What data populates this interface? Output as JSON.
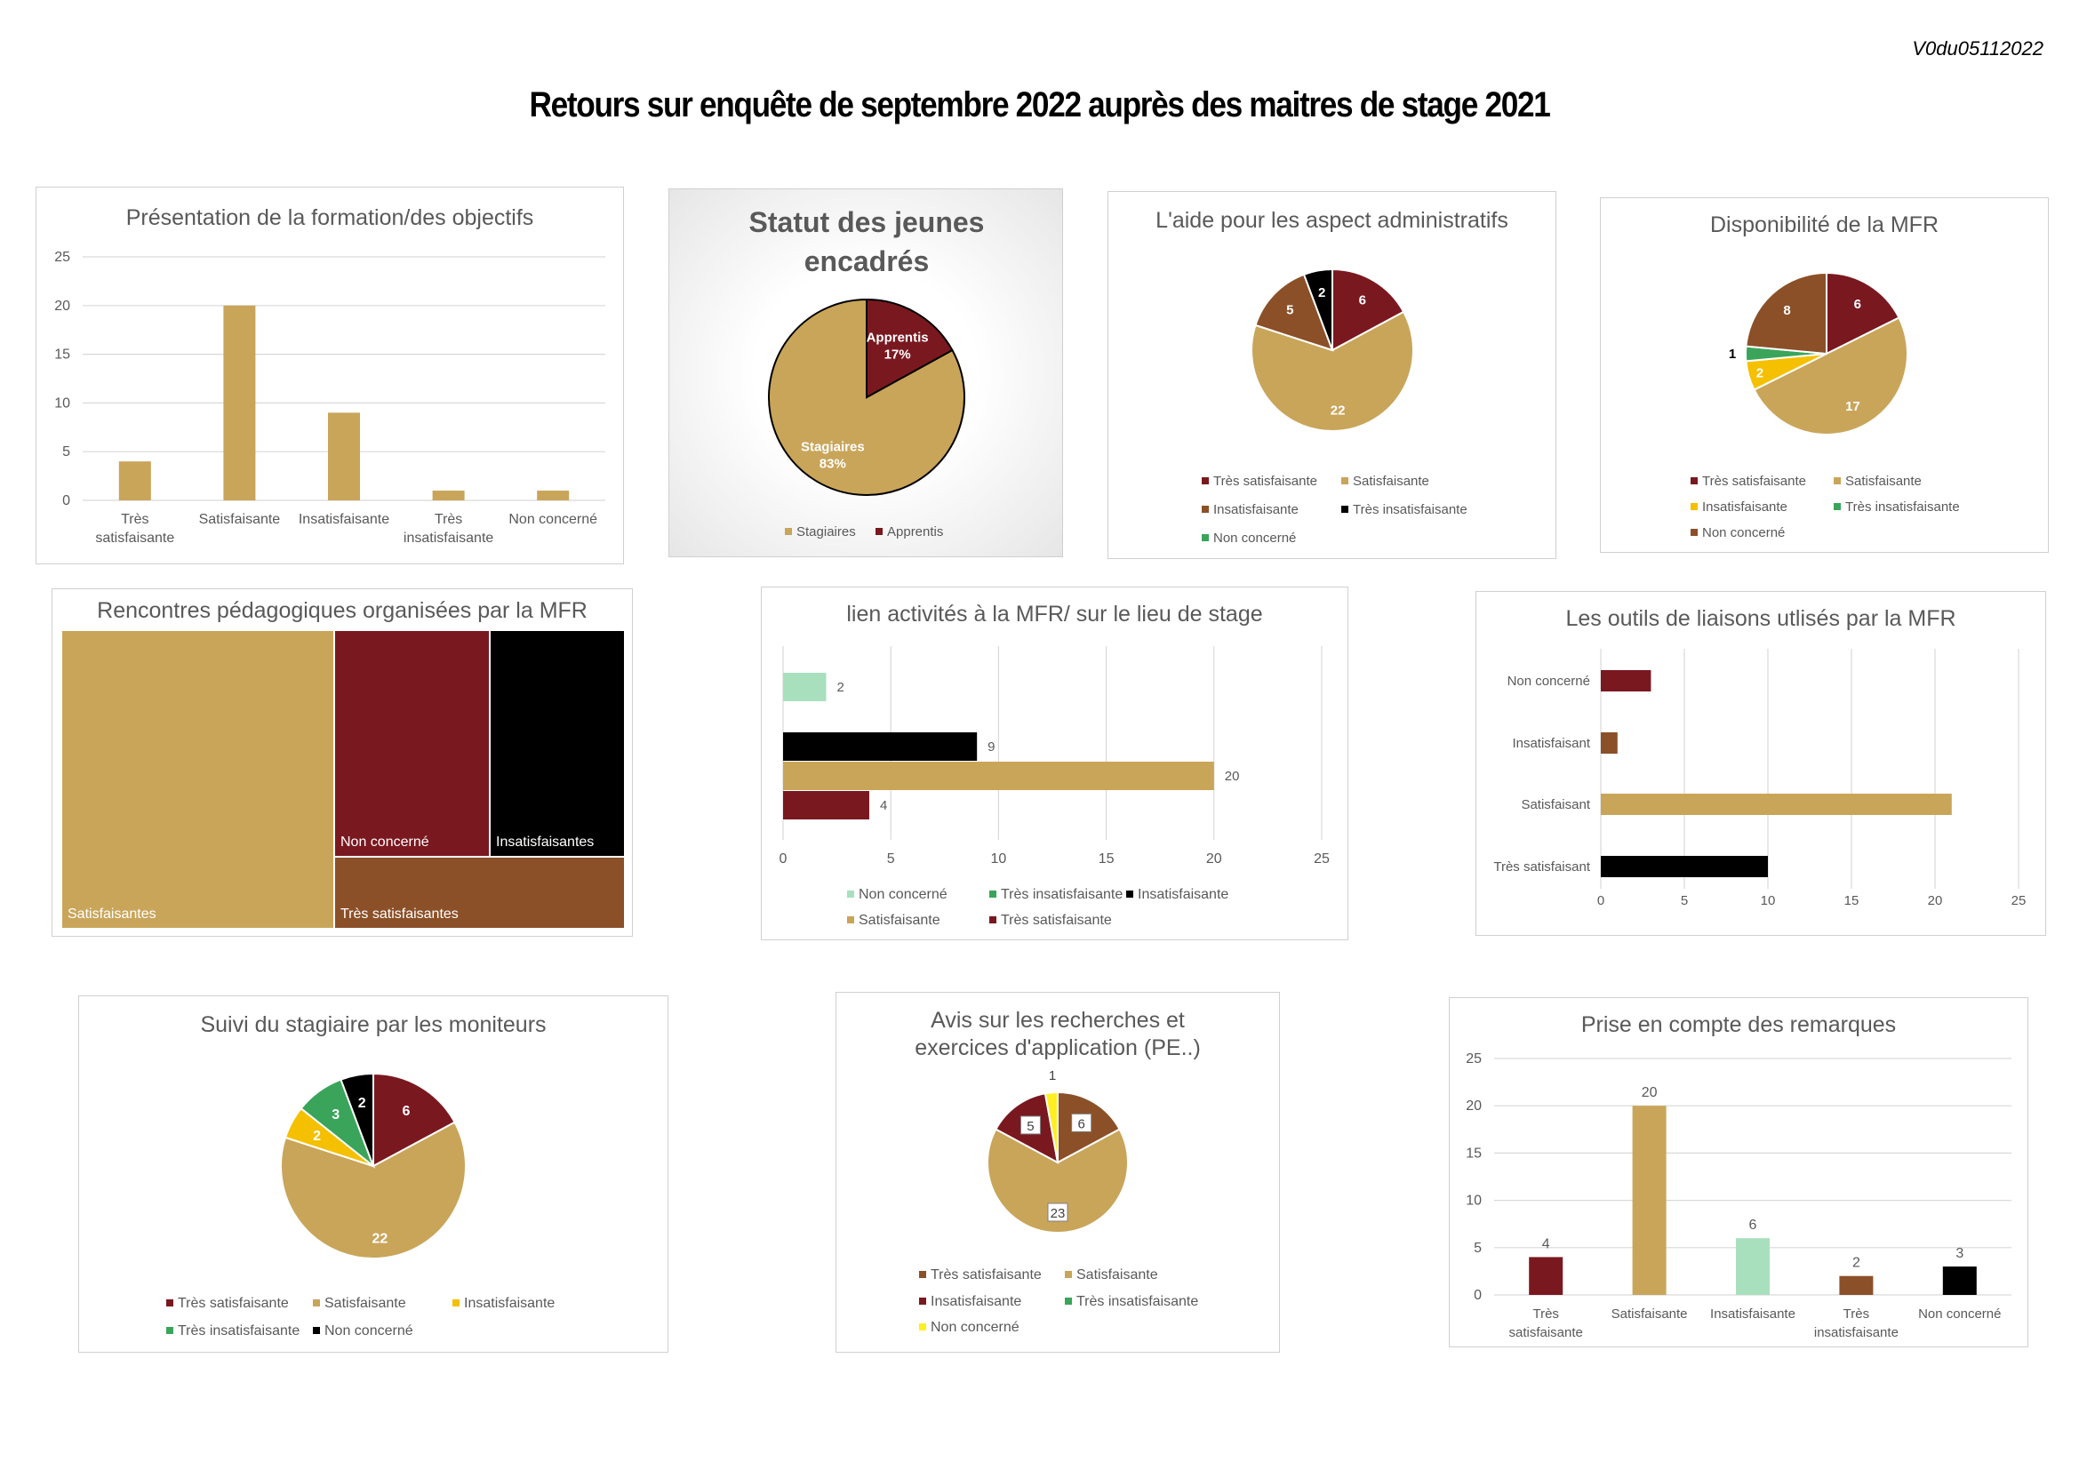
{
  "header": {
    "version": "V0du05112022",
    "title": "Retours sur enquête de septembre 2022 auprès des maitres de stage 2021"
  },
  "colors": {
    "gold": "#c9a55a",
    "bordeaux": "#7a1820",
    "brown": "#8b5028",
    "black": "#000000",
    "yellow": "#f5c000",
    "green": "#3aa55a",
    "mint": "#a8e0be",
    "bright_yellow": "#ffee22"
  },
  "chart_data": [
    {
      "id": "presentation",
      "type": "bar",
      "title": "Présentation de la formation/des objectifs",
      "categories": [
        "Très satisfaisante",
        "Satisfaisante",
        "Insatisfaisante",
        "Très insatisfaisante",
        "Non concerné"
      ],
      "values": [
        4,
        20,
        9,
        1,
        1
      ],
      "ylim": [
        0,
        25
      ],
      "yticks": [
        0,
        5,
        10,
        15,
        20,
        25
      ],
      "grid": true
    },
    {
      "id": "statut",
      "type": "pie",
      "title": "Statut des jeunes encadrés",
      "labels": [
        "Stagiaires",
        "Apprentis"
      ],
      "values": [
        83,
        17
      ],
      "value_labels": [
        "83%",
        "17%"
      ],
      "legend": "bottom"
    },
    {
      "id": "aide-admin",
      "type": "pie",
      "title": "L'aide pour les aspect administratifs",
      "labels": [
        "Très satisfaisante",
        "Satisfaisante",
        "Insatisfaisante",
        "Très insatisfaisante",
        "Non concerné"
      ],
      "values": [
        6,
        22,
        5,
        2,
        0
      ],
      "legend": "bottom"
    },
    {
      "id": "disponibilite",
      "type": "pie",
      "title": "Disponibilité de la MFR",
      "labels": [
        "Très satisfaisante",
        "Satisfaisante",
        "Insatisfaisante",
        "Très insatisfaisante",
        "Non concerné"
      ],
      "values": [
        6,
        17,
        2,
        1,
        8
      ],
      "legend": "bottom"
    },
    {
      "id": "rencontres",
      "type": "treemap",
      "title": "Rencontres pédagogiques organisées par la MFR",
      "labels": [
        "Satisfaisantes",
        "Non concerné",
        "Insatisfaisantes",
        "Très satisfaisantes"
      ]
    },
    {
      "id": "lien-activites",
      "type": "bar",
      "orientation": "horizontal",
      "title": "lien activités à la MFR/ sur le lieu de stage",
      "series": [
        {
          "name": "Non concerné",
          "value": 2
        },
        {
          "name": "Très insatisfaisante",
          "value": 0
        },
        {
          "name": "Insatisfaisante",
          "value": 9
        },
        {
          "name": "Satisfaisante",
          "value": 20
        },
        {
          "name": "Très satisfaisante",
          "value": 4
        }
      ],
      "xlim": [
        0,
        25
      ],
      "xticks": [
        0,
        5,
        10,
        15,
        20,
        25
      ],
      "legend": "bottom"
    },
    {
      "id": "outils-liaison",
      "type": "bar",
      "orientation": "horizontal",
      "title": "Les outils de liaisons utlisés par la MFR",
      "categories": [
        "Très satisfaisant",
        "Satisfaisant",
        "Insatisfaisant",
        "Non concerné"
      ],
      "values": [
        10,
        21,
        1,
        3
      ],
      "xlim": [
        0,
        25
      ],
      "xticks": [
        0,
        5,
        10,
        15,
        20,
        25
      ],
      "grid": true
    },
    {
      "id": "suivi",
      "type": "pie",
      "title": "Suivi du stagiaire par les moniteurs",
      "labels": [
        "Très satisfaisante",
        "Satisfaisante",
        "Insatisfaisante",
        "Très insatisfaisante",
        "Non concerné"
      ],
      "values": [
        6,
        22,
        2,
        3,
        2
      ],
      "legend": "bottom"
    },
    {
      "id": "avis-recherches",
      "type": "pie",
      "title": "Avis sur les recherches et exercices d'application (PE..)",
      "labels": [
        "Très satisfaisante",
        "Satisfaisante",
        "Insatisfaisante",
        "Très insatisfaisante",
        "Non concerné"
      ],
      "values": [
        6,
        23,
        5,
        0,
        1
      ],
      "legend": "bottom"
    },
    {
      "id": "prise-compte",
      "type": "bar",
      "title": "Prise en compte des remarques",
      "categories": [
        "Très satisfaisante",
        "Satisfaisante",
        "Insatisfaisante",
        "Très insatisfaisante",
        "Non concerné"
      ],
      "values": [
        4,
        20,
        6,
        2,
        3
      ],
      "ylim": [
        0,
        25
      ],
      "yticks": [
        0,
        5,
        10,
        15,
        20,
        25
      ],
      "grid": true
    }
  ]
}
